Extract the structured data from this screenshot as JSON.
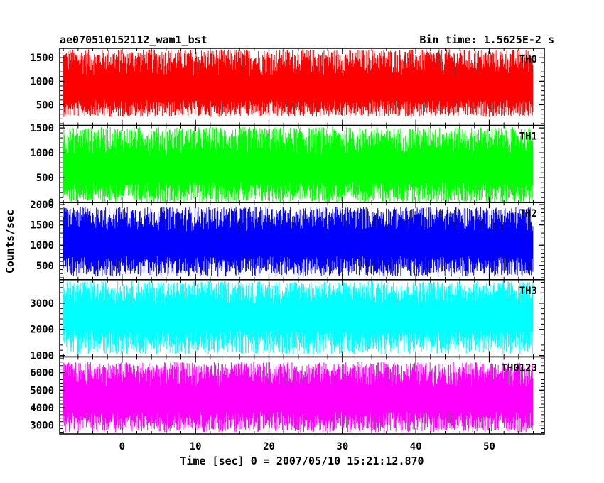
{
  "chart_data": {
    "type": "line",
    "title_left": "ae070510152112_wam1_bst",
    "title_right": "Bin time: 1.5625E-2 s",
    "xlabel": "Time [sec] 0 = 2007/05/10 15:21:12.870",
    "ylabel": "Counts/sec",
    "xlim": [
      -8.5,
      57.5
    ],
    "x_ticks": [
      "0",
      "10",
      "20",
      "30",
      "40",
      "50"
    ],
    "x_range": [
      -8,
      56
    ],
    "bin_time": 0.015625,
    "grid": false,
    "panels": [
      {
        "name": "TH0",
        "color": "#ff0000",
        "ylim": [
          60,
          1700
        ],
        "y_ticks": [
          "500",
          "1000",
          "1500"
        ],
        "mean": 790,
        "min": 240,
        "max": 1680
      },
      {
        "name": "TH1",
        "color": "#00ff00",
        "ylim": [
          0,
          1550
        ],
        "y_ticks": [
          "0",
          "500",
          "1000",
          "1500"
        ],
        "mean": 640,
        "min": 0,
        "max": 1520
      },
      {
        "name": "TH2",
        "color": "#0000ff",
        "ylim": [
          150,
          2050
        ],
        "y_ticks": [
          "500",
          "1000",
          "1500",
          "2000"
        ],
        "mean": 1000,
        "min": 230,
        "max": 1950
      },
      {
        "name": "TH3",
        "color": "#00ffff",
        "ylim": [
          950,
          3900
        ],
        "y_ticks": [
          "1000",
          "2000",
          "3000"
        ],
        "mean": 2450,
        "min": 1050,
        "max": 3850
      },
      {
        "name": "TH0123",
        "color": "#ff00ff",
        "ylim": [
          2500,
          6900
        ],
        "y_ticks": [
          "3000",
          "4000",
          "5000",
          "6000"
        ],
        "mean": 4400,
        "min": 2600,
        "max": 6600
      }
    ]
  }
}
